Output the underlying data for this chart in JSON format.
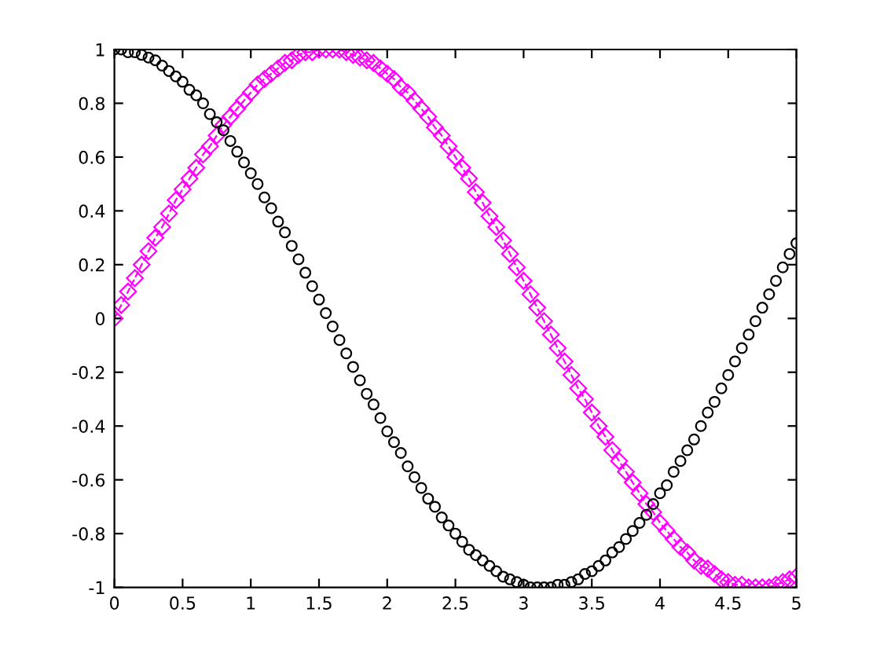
{
  "chart_data": {
    "type": "line",
    "x": [
      0,
      0.05,
      0.1,
      0.15,
      0.2,
      0.25,
      0.3,
      0.35,
      0.4,
      0.45,
      0.5,
      0.55,
      0.6,
      0.65,
      0.7,
      0.75,
      0.8,
      0.85,
      0.9,
      0.95,
      1,
      1.05,
      1.1,
      1.15,
      1.2,
      1.25,
      1.3,
      1.35,
      1.4,
      1.45,
      1.5,
      1.55,
      1.6,
      1.65,
      1.7,
      1.75,
      1.8,
      1.85,
      1.9,
      1.95,
      2,
      2.05,
      2.1,
      2.15,
      2.2,
      2.25,
      2.3,
      2.35,
      2.4,
      2.45,
      2.5,
      2.55,
      2.6,
      2.65,
      2.7,
      2.75,
      2.8,
      2.85,
      2.9,
      2.95,
      3,
      3.05,
      3.1,
      3.15,
      3.2,
      3.25,
      3.3,
      3.35,
      3.4,
      3.45,
      3.5,
      3.55,
      3.6,
      3.65,
      3.7,
      3.75,
      3.8,
      3.85,
      3.9,
      3.95,
      4,
      4.05,
      4.1,
      4.15,
      4.2,
      4.25,
      4.3,
      4.35,
      4.4,
      4.45,
      4.5,
      4.55,
      4.6,
      4.65,
      4.7,
      4.75,
      4.8,
      4.85,
      4.9,
      4.95,
      5
    ],
    "series": [
      {
        "type": "scatter",
        "marker": "circle",
        "color": "#000000",
        "values": [
          1,
          1,
          0.99,
          0.99,
          0.98,
          0.97,
          0.96,
          0.94,
          0.92,
          0.9,
          0.88,
          0.85,
          0.83,
          0.8,
          0.76,
          0.73,
          0.7,
          0.66,
          0.62,
          0.58,
          0.54,
          0.5,
          0.45,
          0.41,
          0.36,
          0.32,
          0.27,
          0.22,
          0.17,
          0.12,
          0.07,
          0.02,
          -0.03,
          -0.08,
          -0.13,
          -0.18,
          -0.23,
          -0.28,
          -0.32,
          -0.37,
          -0.42,
          -0.46,
          -0.5,
          -0.55,
          -0.59,
          -0.63,
          -0.67,
          -0.7,
          -0.74,
          -0.77,
          -0.8,
          -0.83,
          -0.86,
          -0.88,
          -0.9,
          -0.92,
          -0.94,
          -0.96,
          -0.97,
          -0.98,
          -0.99,
          -1,
          -1,
          -1,
          -1,
          -0.99,
          -0.99,
          -0.98,
          -0.97,
          -0.95,
          -0.94,
          -0.92,
          -0.9,
          -0.87,
          -0.85,
          -0.82,
          -0.79,
          -0.76,
          -0.73,
          -0.69,
          -0.65,
          -0.62,
          -0.57,
          -0.53,
          -0.49,
          -0.45,
          -0.4,
          -0.35,
          -0.31,
          -0.26,
          -0.21,
          -0.16,
          -0.11,
          -0.06,
          -0.01,
          0.04,
          0.09,
          0.14,
          0.19,
          0.24,
          0.28
        ]
      },
      {
        "marker": "diamond",
        "line_style": "dashed",
        "color": "#ff00ff",
        "values": [
          0,
          0.05,
          0.1,
          0.15,
          0.2,
          0.25,
          0.3,
          0.34,
          0.39,
          0.44,
          0.48,
          0.52,
          0.56,
          0.61,
          0.64,
          0.68,
          0.72,
          0.75,
          0.78,
          0.81,
          0.84,
          0.87,
          0.89,
          0.91,
          0.93,
          0.95,
          0.96,
          0.98,
          0.99,
          0.99,
          1,
          1,
          1,
          1,
          0.99,
          0.98,
          0.97,
          0.96,
          0.95,
          0.93,
          0.91,
          0.89,
          0.86,
          0.84,
          0.81,
          0.78,
          0.75,
          0.71,
          0.68,
          0.64,
          0.6,
          0.56,
          0.52,
          0.47,
          0.43,
          0.38,
          0.34,
          0.29,
          0.24,
          0.19,
          0.14,
          0.09,
          0.04,
          -0.01,
          -0.06,
          -0.11,
          -0.16,
          -0.21,
          -0.26,
          -0.3,
          -0.35,
          -0.4,
          -0.44,
          -0.49,
          -0.53,
          -0.57,
          -0.61,
          -0.65,
          -0.69,
          -0.72,
          -0.76,
          -0.79,
          -0.82,
          -0.85,
          -0.87,
          -0.9,
          -0.92,
          -0.93,
          -0.95,
          -0.97,
          -0.98,
          -0.99,
          -0.99,
          -1,
          -1,
          -1,
          -1,
          -0.99,
          -0.98,
          -0.97,
          -0.96
        ]
      }
    ],
    "xlim": [
      0,
      5
    ],
    "ylim": [
      -1,
      1
    ],
    "xticks": [
      0,
      0.5,
      1,
      1.5,
      2,
      2.5,
      3,
      3.5,
      4,
      4.5,
      5
    ],
    "yticks": [
      -1,
      -0.8,
      -0.6,
      -0.4,
      -0.2,
      0,
      0.2,
      0.4,
      0.6,
      0.8,
      1
    ]
  }
}
